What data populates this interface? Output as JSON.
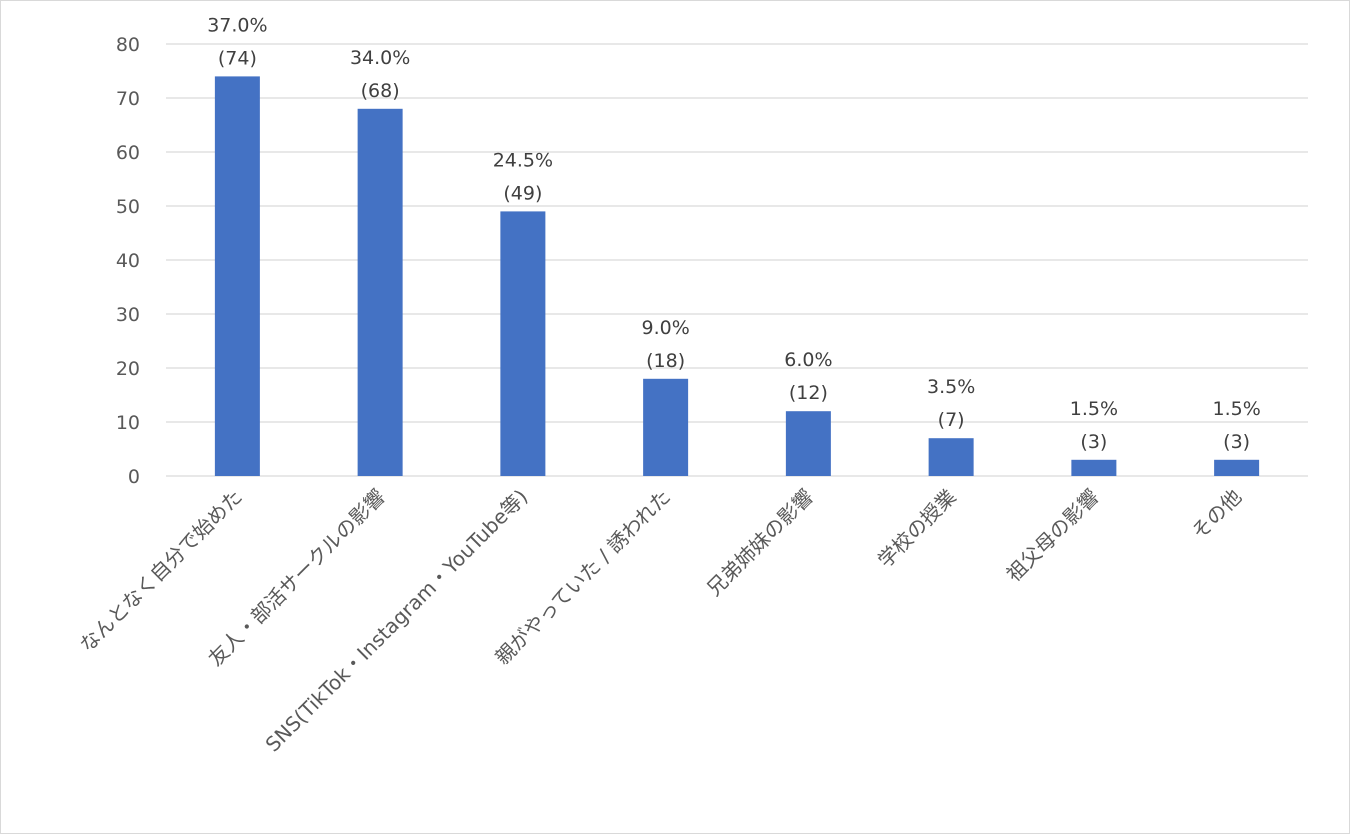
{
  "chart_data": {
    "type": "bar",
    "title": "",
    "xlabel": "",
    "ylabel": "",
    "ylim": [
      0,
      80
    ],
    "yticks": [
      0,
      10,
      20,
      30,
      40,
      50,
      60,
      70,
      80
    ],
    "grid": true,
    "legend": "none",
    "colors": {
      "bar": "#4472C4",
      "grid": "#D9D9D9",
      "text": "#595959"
    },
    "categories": [
      "なんとなく自分で始めた",
      "友人・部活サークルの影響",
      "SNS(TikTok・Instagram・YouTube等)",
      "親がやっていた / 誘われた",
      "兄弟姉妹の影響",
      "学校の授業",
      "祖父母の影響",
      "その他"
    ],
    "values": [
      74,
      68,
      49,
      18,
      12,
      7,
      3,
      3
    ],
    "percent_labels": [
      "37.0%",
      "34.0%",
      "24.5%",
      "9.0%",
      "6.0%",
      "3.5%",
      "1.5%",
      "1.5%"
    ],
    "count_labels": [
      "(74)",
      "(68)",
      "(49)",
      "(18)",
      "(12)",
      "(7)",
      "(3)",
      "(3)"
    ]
  }
}
